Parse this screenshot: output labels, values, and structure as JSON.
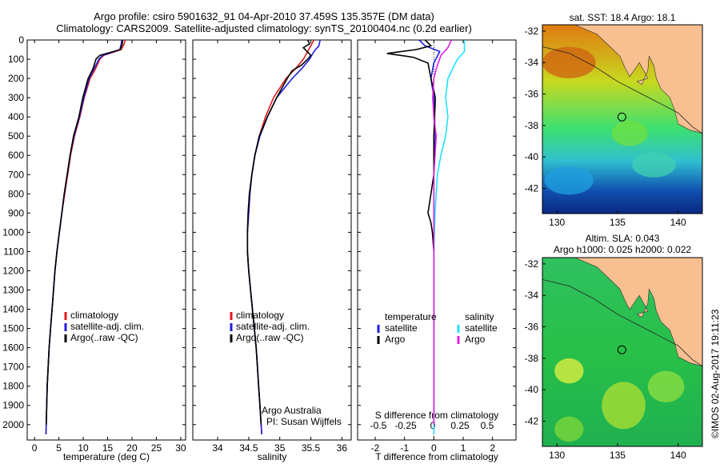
{
  "title": {
    "line1": "Argo profile: csiro 5901632_91 04-Apr-2010 37.459S 135.357E (DM data)",
    "line2": "Climatology: CARS2009. Satellite-adjusted climatology: synTS_20100404.nc (0.2d earlier)"
  },
  "colors": {
    "climatology": "#e41a1c",
    "satellite": "#1f1fe0",
    "argo": "#000000",
    "sal_satellite": "#20e0ff",
    "sal_argo": "#e020e0"
  },
  "chart_data": [
    {
      "type": "line",
      "panel": "temperature",
      "xlabel": "temperature (deg C)",
      "xlim": [
        -1.5,
        31
      ],
      "ylim": [
        0,
        2080
      ],
      "xticks": [
        0,
        5,
        10,
        15,
        20,
        25,
        30
      ],
      "yticks": [
        0,
        100,
        200,
        300,
        400,
        500,
        600,
        700,
        800,
        900,
        1000,
        1100,
        1200,
        1300,
        1400,
        1500,
        1600,
        1700,
        1800,
        1900,
        2000
      ],
      "y_reversed": true,
      "legend": [
        "climatology",
        "satellite-adj. clim.",
        "Argo(..raw -QC)"
      ],
      "series": [
        {
          "name": "climatology",
          "color_key": "climatology",
          "x": [
            18.6,
            18.4,
            17.8,
            14.2,
            13.4,
            12.5,
            11.4,
            10.2,
            9.3,
            8.2,
            7.4,
            6.8,
            6.2,
            5.6,
            5.1,
            4.6,
            4.2,
            3.9,
            3.6,
            3.3,
            3.0,
            2.8,
            2.6,
            2.5,
            2.4,
            2.35
          ],
          "y": [
            0,
            20,
            50,
            80,
            100,
            150,
            200,
            300,
            400,
            500,
            600,
            700,
            800,
            900,
            1000,
            1100,
            1200,
            1300,
            1400,
            1500,
            1600,
            1700,
            1800,
            1900,
            2000,
            2050
          ]
        },
        {
          "name": "satellite-adj. clim.",
          "color_key": "satellite",
          "x": [
            17.9,
            17.8,
            17.5,
            14.0,
            13.2,
            12.2,
            11.2,
            10.1,
            9.2,
            8.1,
            7.3,
            6.7,
            6.1,
            5.6,
            5.1,
            4.6,
            4.2,
            3.9,
            3.6,
            3.3,
            3.0,
            2.8,
            2.6,
            2.5,
            2.4,
            2.35
          ],
          "y": [
            0,
            20,
            50,
            80,
            100,
            150,
            200,
            300,
            400,
            500,
            600,
            700,
            800,
            900,
            1000,
            1100,
            1200,
            1300,
            1400,
            1500,
            1600,
            1700,
            1800,
            1900,
            2000,
            2050
          ]
        },
        {
          "name": "Argo(..raw -QC)",
          "color_key": "argo",
          "x": [
            18.1,
            18.0,
            17.6,
            13.4,
            12.6,
            12.0,
            11.0,
            9.9,
            9.1,
            8.0,
            7.3,
            6.7,
            6.1,
            5.6,
            5.1,
            4.6,
            4.2,
            3.9,
            3.6,
            3.3,
            3.0,
            2.8,
            2.6,
            2.5,
            2.4
          ],
          "y": [
            0,
            20,
            50,
            80,
            100,
            150,
            200,
            300,
            400,
            500,
            600,
            700,
            800,
            900,
            1000,
            1100,
            1200,
            1300,
            1400,
            1500,
            1600,
            1700,
            1800,
            1900,
            2000
          ]
        }
      ]
    },
    {
      "type": "line",
      "panel": "salinity",
      "xlabel": "salinity",
      "xlim": [
        33.6,
        36.15
      ],
      "ylim": [
        0,
        2080
      ],
      "xticks": [
        34,
        34.5,
        35,
        35.5,
        36
      ],
      "xtick_labels": [
        "34",
        "34.5",
        "35",
        "35.5",
        "36"
      ],
      "y_reversed": true,
      "legend": [
        "climatology",
        "satellite-adj. clim.",
        "Argo(..raw -QC)"
      ],
      "annotation": [
        "Argo Australia",
        "PI: Susan Wijffels"
      ],
      "series": [
        {
          "name": "climatology",
          "color_key": "climatology",
          "x": [
            35.55,
            35.5,
            35.45,
            35.38,
            35.25,
            35.1,
            34.9,
            34.77,
            34.67,
            34.6,
            34.55,
            34.52,
            34.5,
            34.48,
            34.48,
            34.5,
            34.53,
            34.56,
            34.59,
            34.62,
            34.64,
            34.66,
            34.68,
            34.7,
            34.71
          ],
          "y": [
            0,
            30,
            60,
            100,
            150,
            200,
            300,
            400,
            500,
            600,
            700,
            800,
            900,
            1000,
            1100,
            1200,
            1300,
            1400,
            1500,
            1600,
            1700,
            1800,
            1900,
            2000,
            2050
          ]
        },
        {
          "name": "satellite-adj. clim.",
          "color_key": "satellite",
          "x": [
            35.65,
            35.63,
            35.55,
            35.48,
            35.35,
            35.2,
            34.95,
            34.8,
            34.68,
            34.6,
            34.55,
            34.52,
            34.5,
            34.48,
            34.48,
            34.5,
            34.53,
            34.56,
            34.59,
            34.62,
            34.64,
            34.66,
            34.68,
            34.7,
            34.71
          ],
          "y": [
            0,
            30,
            60,
            100,
            150,
            200,
            300,
            400,
            500,
            600,
            700,
            800,
            900,
            1000,
            1100,
            1200,
            1300,
            1400,
            1500,
            1600,
            1700,
            1800,
            1900,
            2000,
            2050
          ]
        },
        {
          "name": "Argo(..raw -QC)",
          "color_key": "argo",
          "x": [
            35.45,
            35.48,
            35.38,
            35.44,
            35.5,
            35.45,
            35.35,
            35.2,
            35.12,
            34.95,
            34.8,
            34.67,
            34.6,
            34.55,
            34.51,
            34.49,
            34.48,
            34.48,
            34.5,
            34.53,
            34.56,
            34.59,
            34.62,
            34.64,
            34.66,
            34.68,
            34.7
          ],
          "y": [
            0,
            20,
            40,
            60,
            80,
            100,
            130,
            160,
            200,
            300,
            400,
            500,
            600,
            700,
            800,
            900,
            1000,
            1100,
            1200,
            1300,
            1400,
            1500,
            1600,
            1700,
            1800,
            1900,
            2000
          ]
        }
      ]
    },
    {
      "type": "line",
      "panel": "difference",
      "xlabel": "T difference from climatology",
      "xlabel_top": "S difference from climatology",
      "xlim": [
        -2.6,
        2.8
      ],
      "ylim": [
        0,
        2080
      ],
      "xticks": [
        -2,
        -1,
        0,
        1,
        2
      ],
      "xticks_top": [
        -0.5,
        -0.25,
        0,
        0.25,
        0.5
      ],
      "xtick_labels_top": [
        "-0.5",
        "-0.25",
        "0",
        "0.25",
        "0.5"
      ],
      "y_reversed": true,
      "legend": {
        "temperature": [
          "satellite",
          "Argo"
        ],
        "salinity": [
          "satellite",
          "Argo"
        ]
      },
      "series": [
        {
          "name": "temperature satellite",
          "color_key": "satellite",
          "x": [
            -0.5,
            -0.3,
            0.2,
            0.1,
            0.0,
            -0.1,
            0.0,
            0.05,
            0.0,
            0.0,
            0.0,
            0.0,
            0.0,
            0.0,
            0.0,
            0.0,
            0.0
          ],
          "y": [
            0,
            30,
            60,
            90,
            120,
            200,
            300,
            500,
            700,
            900,
            1100,
            1300,
            1500,
            1700,
            1900,
            2000,
            2050
          ]
        },
        {
          "name": "temperature Argo",
          "color_key": "argo",
          "x": [
            -0.3,
            -0.1,
            -0.6,
            -1.6,
            -0.7,
            -0.2,
            -0.1,
            0.05,
            0.0,
            0.0,
            -0.1,
            -0.2,
            -0.1,
            -0.05,
            0.0,
            0.0,
            0.0,
            0.0,
            0.0
          ],
          "y": [
            0,
            30,
            50,
            70,
            90,
            120,
            200,
            300,
            500,
            700,
            800,
            900,
            950,
            1000,
            1100,
            1300,
            1600,
            1900,
            2000
          ]
        },
        {
          "name": "salinity satellite",
          "color_key": "sal_satellite",
          "x": [
            0.26,
            0.26,
            0.2,
            0.12,
            0.1,
            0.12,
            0.1,
            0.06,
            0.03,
            0.02,
            0.01,
            0.0,
            0.0,
            0.0,
            0.0,
            0.0
          ],
          "y": [
            0,
            60,
            100,
            200,
            300,
            400,
            500,
            600,
            700,
            800,
            900,
            1100,
            1400,
            1700,
            2000,
            2050
          ]
        },
        {
          "name": "salinity Argo",
          "color_key": "sal_argo",
          "x": [
            0.15,
            0.12,
            0.06,
            0.02,
            0.0,
            -0.01,
            0.0,
            0.02,
            0.0,
            0.0,
            0.0,
            0.0,
            0.0,
            0.0
          ],
          "y": [
            0,
            40,
            80,
            150,
            200,
            300,
            400,
            500,
            700,
            900,
            1200,
            1500,
            1800,
            2000
          ]
        }
      ]
    },
    {
      "type": "heatmap",
      "panel": "sst-map",
      "title": "sat. SST: 18.4 Argo: 18.1",
      "xlim": [
        128.8,
        142
      ],
      "ylim": [
        -43.6,
        -31.6
      ],
      "xticks": [
        130,
        135,
        140
      ],
      "yticks": [
        -32,
        -34,
        -36,
        -38,
        -40,
        -42
      ],
      "argo_position": {
        "lon": 135.357,
        "lat": -37.459
      }
    },
    {
      "type": "heatmap",
      "panel": "sla-map",
      "title": [
        "Altim. SLA: 0.043",
        "Argo h1000: 0.025 h2000: 0.022"
      ],
      "xlim": [
        128.8,
        142
      ],
      "ylim": [
        -43.6,
        -31.6
      ],
      "xticks": [
        130,
        135,
        140
      ],
      "yticks": [
        -32,
        -34,
        -36,
        -38,
        -40,
        -42
      ],
      "argo_position": {
        "lon": 135.357,
        "lat": -37.459
      }
    }
  ],
  "credit": "©IMOS 02-Aug-2017 19:11:23"
}
